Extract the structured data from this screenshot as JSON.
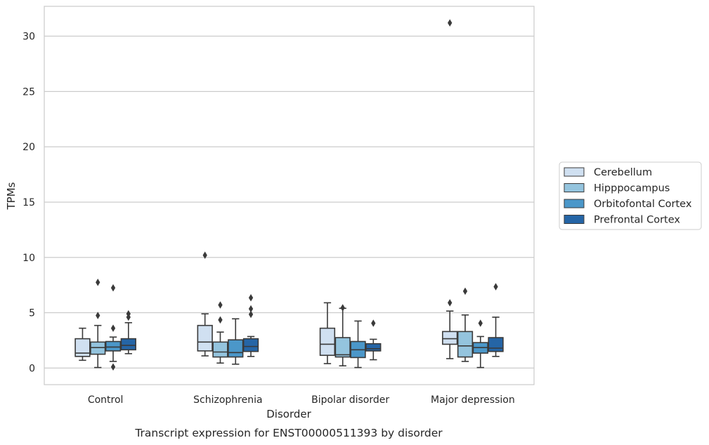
{
  "chart_data": {
    "type": "boxplot",
    "caption": "Transcript expression for ENST00000511393 by disorder",
    "xlabel": "Disorder",
    "ylabel": "TPMs",
    "ylim": [
      -1.5,
      32.7
    ],
    "yticks": [
      0,
      5,
      10,
      15,
      20,
      25,
      30
    ],
    "grid": "horizontal",
    "legend_position": "right",
    "categories": [
      "Control",
      "Schizophrenia",
      "Bipolar disorder",
      "Major depression"
    ],
    "series": [
      {
        "name": "Cerebellum",
        "color": "#d0e0f1",
        "boxes": [
          {
            "whislo": 0.7,
            "q1": 1.05,
            "med": 1.35,
            "q3": 2.65,
            "whishi": 3.6,
            "fliers": []
          },
          {
            "whislo": 1.1,
            "q1": 1.55,
            "med": 2.35,
            "q3": 3.85,
            "whishi": 4.9,
            "fliers": [
              10.2
            ]
          },
          {
            "whislo": 0.4,
            "q1": 1.15,
            "med": 2.15,
            "q3": 3.6,
            "whishi": 5.9,
            "fliers": []
          },
          {
            "whislo": 0.85,
            "q1": 2.15,
            "med": 2.65,
            "q3": 3.3,
            "whishi": 5.15,
            "fliers": [
              5.9,
              31.2
            ]
          }
        ]
      },
      {
        "name": "Hipppocampus",
        "color": "#94c4de",
        "boxes": [
          {
            "whislo": 0.05,
            "q1": 1.25,
            "med": 1.85,
            "q3": 2.35,
            "whishi": 3.85,
            "fliers": [
              4.75,
              7.75
            ]
          },
          {
            "whislo": 0.45,
            "q1": 1.0,
            "med": 1.45,
            "q3": 2.35,
            "whishi": 3.25,
            "fliers": [
              4.35,
              5.7
            ]
          },
          {
            "whislo": 0.2,
            "q1": 1.0,
            "med": 1.2,
            "q3": 2.75,
            "whishi": 5.4,
            "fliers": [
              5.45
            ]
          },
          {
            "whislo": 0.6,
            "q1": 1.0,
            "med": 2.0,
            "q3": 3.3,
            "whishi": 4.8,
            "fliers": [
              6.95
            ]
          }
        ]
      },
      {
        "name": "Orbitofontal Cortex",
        "color": "#4b97c9",
        "boxes": [
          {
            "whislo": 0.6,
            "q1": 1.55,
            "med": 1.9,
            "q3": 2.4,
            "whishi": 2.8,
            "fliers": [
              0.1,
              3.6,
              7.25
            ]
          },
          {
            "whislo": 0.35,
            "q1": 1.0,
            "med": 1.4,
            "q3": 2.55,
            "whishi": 4.45,
            "fliers": []
          },
          {
            "whislo": 0.05,
            "q1": 0.95,
            "med": 1.65,
            "q3": 2.4,
            "whishi": 4.25,
            "fliers": []
          },
          {
            "whislo": 0.05,
            "q1": 1.35,
            "med": 1.85,
            "q3": 2.3,
            "whishi": 2.85,
            "fliers": [
              4.05
            ]
          }
        ]
      },
      {
        "name": "Prefrontal Cortex",
        "color": "#2565a6",
        "boxes": [
          {
            "whislo": 1.3,
            "q1": 1.65,
            "med": 2.05,
            "q3": 2.65,
            "whishi": 4.1,
            "fliers": [
              4.6,
              4.9
            ]
          },
          {
            "whislo": 1.05,
            "q1": 1.5,
            "med": 1.95,
            "q3": 2.65,
            "whishi": 2.85,
            "fliers": [
              4.85,
              5.35,
              6.35
            ]
          },
          {
            "whislo": 0.75,
            "q1": 1.55,
            "med": 1.75,
            "q3": 2.2,
            "whishi": 2.6,
            "fliers": [
              4.05
            ]
          },
          {
            "whislo": 1.05,
            "q1": 1.5,
            "med": 1.8,
            "q3": 2.75,
            "whishi": 4.6,
            "fliers": [
              7.35
            ]
          }
        ]
      }
    ]
  }
}
